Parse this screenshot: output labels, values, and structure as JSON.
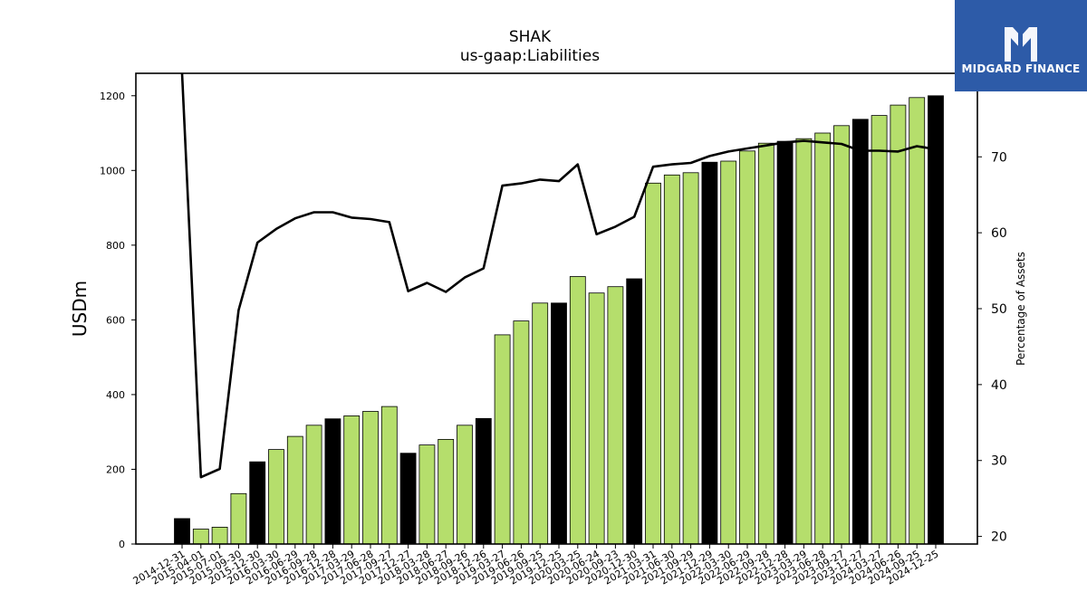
{
  "logo": {
    "text": "MIDGARD FINANCE",
    "icon": "midgard-logo-icon",
    "background": "#2d5ba8"
  },
  "chart_data": {
    "type": "bar",
    "title": "SHAK",
    "subtitle": "us-gaap:Liabilities",
    "ylabel": "USDm",
    "y2label": "Percentage of Assets",
    "ylim": [
      0,
      1260
    ],
    "y2lim": [
      19,
      81
    ],
    "yticks": [
      0,
      200,
      400,
      600,
      800,
      1000,
      1200
    ],
    "y2ticks": [
      20,
      30,
      40,
      50,
      60,
      70
    ],
    "colors": {
      "quarter": "#b5de6c",
      "annual": "#000000",
      "line": "#000000"
    },
    "categories": [
      "2014-12-31",
      "2015-04-01",
      "2015-07-01",
      "2015-09-30",
      "2015-12-30",
      "2016-03-30",
      "2016-06-29",
      "2016-09-28",
      "2016-12-28",
      "2017-03-29",
      "2017-06-28",
      "2017-09-27",
      "2017-12-27",
      "2018-03-28",
      "2018-06-27",
      "2018-09-26",
      "2018-12-26",
      "2019-03-27",
      "2019-06-26",
      "2019-09-25",
      "2019-12-25",
      "2020-03-25",
      "2020-06-24",
      "2020-09-23",
      "2020-12-30",
      "2021-03-31",
      "2021-06-30",
      "2021-09-29",
      "2021-12-29",
      "2022-03-30",
      "2022-06-29",
      "2022-09-28",
      "2022-12-28",
      "2023-03-29",
      "2023-06-28",
      "2023-09-27",
      "2023-12-27",
      "2024-03-27",
      "2024-06-26",
      "2024-09-25",
      "2024-12-25"
    ],
    "series": [
      {
        "name": "Liabilities",
        "type": "bar",
        "values": [
          68,
          40,
          45,
          135,
          220,
          253,
          288,
          318,
          335,
          343,
          355,
          368,
          243,
          265,
          280,
          318,
          336,
          560,
          597,
          645,
          645,
          716,
          672,
          689,
          710,
          966,
          988,
          994,
          1022,
          1025,
          1052,
          1073,
          1078,
          1085,
          1100,
          1120,
          1137,
          1147,
          1175,
          1195,
          1200
        ],
        "annual": [
          true,
          false,
          false,
          false,
          true,
          false,
          false,
          false,
          true,
          false,
          false,
          false,
          true,
          false,
          false,
          false,
          true,
          false,
          false,
          false,
          true,
          false,
          false,
          false,
          true,
          false,
          false,
          false,
          true,
          false,
          false,
          false,
          true,
          false,
          false,
          false,
          true,
          false,
          false,
          false,
          true
        ]
      },
      {
        "name": "Percentage of Assets",
        "type": "line",
        "axis": "right",
        "values": [
          null,
          27.8,
          28.9,
          49.8,
          58.7,
          60.5,
          61.9,
          62.7,
          62.7,
          62.0,
          61.8,
          61.4,
          52.3,
          53.4,
          52.2,
          54.1,
          55.3,
          66.2,
          66.5,
          67.0,
          66.8,
          69.0,
          59.8,
          60.8,
          62.1,
          68.7,
          69.0,
          69.2,
          70.1,
          70.7,
          71.1,
          71.5,
          71.9,
          72.1,
          71.9,
          71.7,
          70.8,
          70.8,
          70.7,
          71.4,
          71.0
        ]
      }
    ]
  }
}
